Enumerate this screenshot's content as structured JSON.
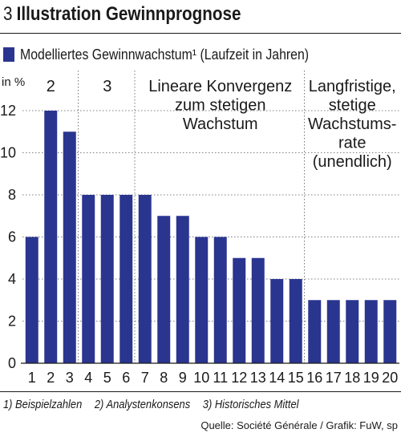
{
  "title_number": "3",
  "title_text": "Illustration Gewinnprognose",
  "legend": {
    "label": "Modelliertes Gewinnwachstum¹ (Laufzeit in Jahren)",
    "color": "#2a3590"
  },
  "footnotes": [
    "1) Beispielzahlen",
    "2) Analystenkonsens",
    "3) Historisches Mittel"
  ],
  "source": "Quelle: Société Générale / Grafik: FuW, sp",
  "chart_data": {
    "type": "bar",
    "ylabel": "in %",
    "ylim": [
      0,
      12
    ],
    "yticks": [
      0,
      2,
      4,
      6,
      8,
      10,
      12
    ],
    "grid": true,
    "categories": [
      "1",
      "2",
      "3",
      "4",
      "5",
      "6",
      "7",
      "8",
      "9",
      "10",
      "11",
      "12",
      "13",
      "14",
      "15",
      "16",
      "17",
      "18",
      "19",
      "20"
    ],
    "values": [
      6,
      12,
      11,
      8,
      8,
      8,
      8,
      7,
      7,
      6,
      6,
      5,
      5,
      4,
      4,
      3,
      3,
      3,
      3,
      3
    ],
    "phases": [
      {
        "from": 1,
        "to": 3,
        "lines": [
          "2"
        ]
      },
      {
        "from": 4,
        "to": 6,
        "lines": [
          "3"
        ]
      },
      {
        "from": 7,
        "to": 15,
        "lines": [
          "Lineare Konvergenz",
          "zum stetigen",
          "Wachstum"
        ]
      },
      {
        "from": 16,
        "to": 20,
        "lines": [
          "Langfristige,",
          "stetige",
          "Wachstums-",
          "rate",
          "(unendlich)"
        ]
      }
    ]
  }
}
